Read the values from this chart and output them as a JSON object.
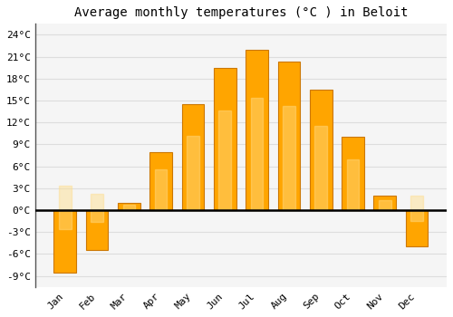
{
  "title": "Average monthly temperatures (°C ) in Beloit",
  "months": [
    "Jan",
    "Feb",
    "Mar",
    "Apr",
    "May",
    "Jun",
    "Jul",
    "Aug",
    "Sep",
    "Oct",
    "Nov",
    "Dec"
  ],
  "values": [
    -8.5,
    -5.5,
    1.0,
    8.0,
    14.5,
    19.5,
    22.0,
    20.3,
    16.5,
    10.0,
    2.0,
    -5.0
  ],
  "bar_color": "#FFA500",
  "bar_edge_color": "#CC7700",
  "background_color": "#FFFFFF",
  "plot_bg_color": "#F5F5F5",
  "grid_color": "#DDDDDD",
  "yticks": [
    -9,
    -6,
    -3,
    0,
    3,
    6,
    9,
    12,
    15,
    18,
    21,
    24
  ],
  "ylim": [
    -10.5,
    25.5
  ],
  "zero_line_color": "#000000",
  "title_fontsize": 10,
  "tick_fontsize": 8,
  "font_family": "monospace"
}
